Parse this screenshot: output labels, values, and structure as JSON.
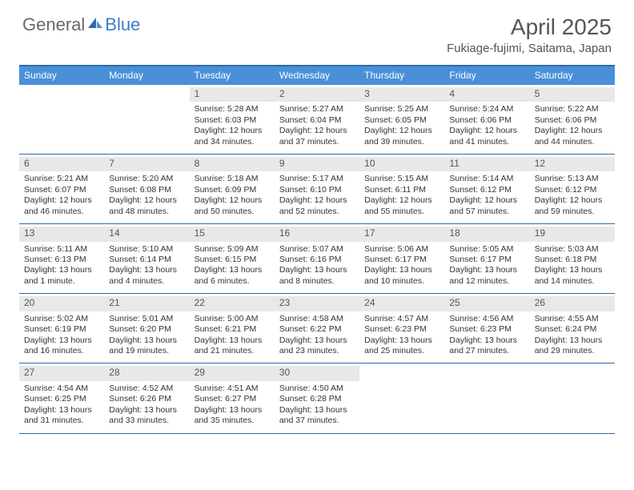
{
  "brand": {
    "part1": "General",
    "part2": "Blue"
  },
  "title": "April 2025",
  "location": "Fukiage-fujimi, Saitama, Japan",
  "daynames": [
    "Sunday",
    "Monday",
    "Tuesday",
    "Wednesday",
    "Thursday",
    "Friday",
    "Saturday"
  ],
  "colors": {
    "header_bar": "#4a90d9",
    "border": "#2f6aa8",
    "daynum_bg": "#e8e8e8",
    "text": "#333333"
  },
  "weeks": [
    [
      null,
      null,
      {
        "n": "1",
        "sr": "Sunrise: 5:28 AM",
        "ss": "Sunset: 6:03 PM",
        "d1": "Daylight: 12 hours",
        "d2": "and 34 minutes."
      },
      {
        "n": "2",
        "sr": "Sunrise: 5:27 AM",
        "ss": "Sunset: 6:04 PM",
        "d1": "Daylight: 12 hours",
        "d2": "and 37 minutes."
      },
      {
        "n": "3",
        "sr": "Sunrise: 5:25 AM",
        "ss": "Sunset: 6:05 PM",
        "d1": "Daylight: 12 hours",
        "d2": "and 39 minutes."
      },
      {
        "n": "4",
        "sr": "Sunrise: 5:24 AM",
        "ss": "Sunset: 6:06 PM",
        "d1": "Daylight: 12 hours",
        "d2": "and 41 minutes."
      },
      {
        "n": "5",
        "sr": "Sunrise: 5:22 AM",
        "ss": "Sunset: 6:06 PM",
        "d1": "Daylight: 12 hours",
        "d2": "and 44 minutes."
      }
    ],
    [
      {
        "n": "6",
        "sr": "Sunrise: 5:21 AM",
        "ss": "Sunset: 6:07 PM",
        "d1": "Daylight: 12 hours",
        "d2": "and 46 minutes."
      },
      {
        "n": "7",
        "sr": "Sunrise: 5:20 AM",
        "ss": "Sunset: 6:08 PM",
        "d1": "Daylight: 12 hours",
        "d2": "and 48 minutes."
      },
      {
        "n": "8",
        "sr": "Sunrise: 5:18 AM",
        "ss": "Sunset: 6:09 PM",
        "d1": "Daylight: 12 hours",
        "d2": "and 50 minutes."
      },
      {
        "n": "9",
        "sr": "Sunrise: 5:17 AM",
        "ss": "Sunset: 6:10 PM",
        "d1": "Daylight: 12 hours",
        "d2": "and 52 minutes."
      },
      {
        "n": "10",
        "sr": "Sunrise: 5:15 AM",
        "ss": "Sunset: 6:11 PM",
        "d1": "Daylight: 12 hours",
        "d2": "and 55 minutes."
      },
      {
        "n": "11",
        "sr": "Sunrise: 5:14 AM",
        "ss": "Sunset: 6:12 PM",
        "d1": "Daylight: 12 hours",
        "d2": "and 57 minutes."
      },
      {
        "n": "12",
        "sr": "Sunrise: 5:13 AM",
        "ss": "Sunset: 6:12 PM",
        "d1": "Daylight: 12 hours",
        "d2": "and 59 minutes."
      }
    ],
    [
      {
        "n": "13",
        "sr": "Sunrise: 5:11 AM",
        "ss": "Sunset: 6:13 PM",
        "d1": "Daylight: 13 hours",
        "d2": "and 1 minute."
      },
      {
        "n": "14",
        "sr": "Sunrise: 5:10 AM",
        "ss": "Sunset: 6:14 PM",
        "d1": "Daylight: 13 hours",
        "d2": "and 4 minutes."
      },
      {
        "n": "15",
        "sr": "Sunrise: 5:09 AM",
        "ss": "Sunset: 6:15 PM",
        "d1": "Daylight: 13 hours",
        "d2": "and 6 minutes."
      },
      {
        "n": "16",
        "sr": "Sunrise: 5:07 AM",
        "ss": "Sunset: 6:16 PM",
        "d1": "Daylight: 13 hours",
        "d2": "and 8 minutes."
      },
      {
        "n": "17",
        "sr": "Sunrise: 5:06 AM",
        "ss": "Sunset: 6:17 PM",
        "d1": "Daylight: 13 hours",
        "d2": "and 10 minutes."
      },
      {
        "n": "18",
        "sr": "Sunrise: 5:05 AM",
        "ss": "Sunset: 6:17 PM",
        "d1": "Daylight: 13 hours",
        "d2": "and 12 minutes."
      },
      {
        "n": "19",
        "sr": "Sunrise: 5:03 AM",
        "ss": "Sunset: 6:18 PM",
        "d1": "Daylight: 13 hours",
        "d2": "and 14 minutes."
      }
    ],
    [
      {
        "n": "20",
        "sr": "Sunrise: 5:02 AM",
        "ss": "Sunset: 6:19 PM",
        "d1": "Daylight: 13 hours",
        "d2": "and 16 minutes."
      },
      {
        "n": "21",
        "sr": "Sunrise: 5:01 AM",
        "ss": "Sunset: 6:20 PM",
        "d1": "Daylight: 13 hours",
        "d2": "and 19 minutes."
      },
      {
        "n": "22",
        "sr": "Sunrise: 5:00 AM",
        "ss": "Sunset: 6:21 PM",
        "d1": "Daylight: 13 hours",
        "d2": "and 21 minutes."
      },
      {
        "n": "23",
        "sr": "Sunrise: 4:58 AM",
        "ss": "Sunset: 6:22 PM",
        "d1": "Daylight: 13 hours",
        "d2": "and 23 minutes."
      },
      {
        "n": "24",
        "sr": "Sunrise: 4:57 AM",
        "ss": "Sunset: 6:23 PM",
        "d1": "Daylight: 13 hours",
        "d2": "and 25 minutes."
      },
      {
        "n": "25",
        "sr": "Sunrise: 4:56 AM",
        "ss": "Sunset: 6:23 PM",
        "d1": "Daylight: 13 hours",
        "d2": "and 27 minutes."
      },
      {
        "n": "26",
        "sr": "Sunrise: 4:55 AM",
        "ss": "Sunset: 6:24 PM",
        "d1": "Daylight: 13 hours",
        "d2": "and 29 minutes."
      }
    ],
    [
      {
        "n": "27",
        "sr": "Sunrise: 4:54 AM",
        "ss": "Sunset: 6:25 PM",
        "d1": "Daylight: 13 hours",
        "d2": "and 31 minutes."
      },
      {
        "n": "28",
        "sr": "Sunrise: 4:52 AM",
        "ss": "Sunset: 6:26 PM",
        "d1": "Daylight: 13 hours",
        "d2": "and 33 minutes."
      },
      {
        "n": "29",
        "sr": "Sunrise: 4:51 AM",
        "ss": "Sunset: 6:27 PM",
        "d1": "Daylight: 13 hours",
        "d2": "and 35 minutes."
      },
      {
        "n": "30",
        "sr": "Sunrise: 4:50 AM",
        "ss": "Sunset: 6:28 PM",
        "d1": "Daylight: 13 hours",
        "d2": "and 37 minutes."
      },
      null,
      null,
      null
    ]
  ]
}
